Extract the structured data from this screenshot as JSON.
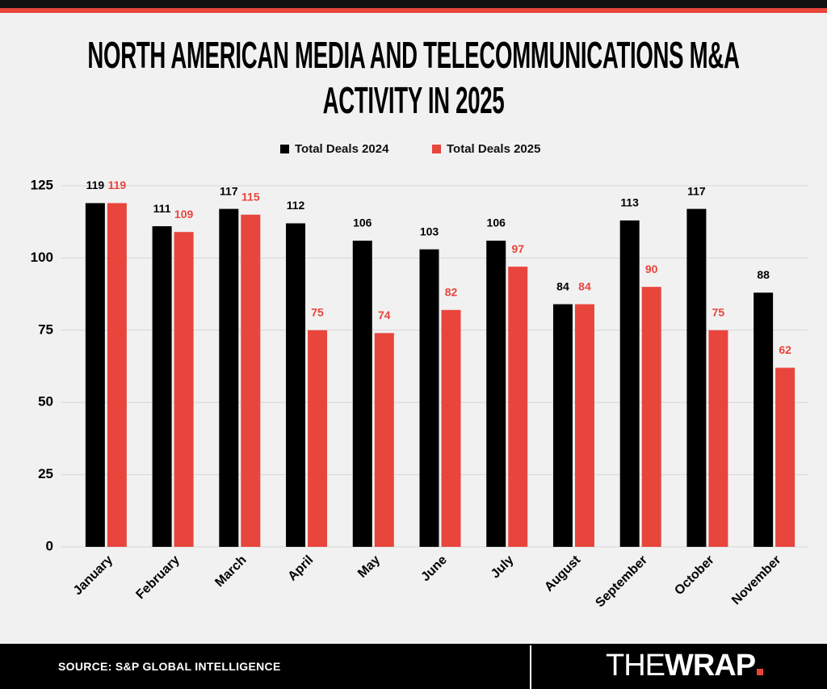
{
  "chart_data": {
    "type": "bar",
    "title": "NORTH AMERICAN MEDIA AND TELECOMMUNICATIONS M&A ACTIVITY IN 2025",
    "categories": [
      "January",
      "February",
      "March",
      "April",
      "May",
      "June",
      "July",
      "August",
      "September",
      "October",
      "November"
    ],
    "series": [
      {
        "name": "Total Deals 2024",
        "color": "#000000",
        "values": [
          119,
          111,
          117,
          112,
          106,
          103,
          106,
          84,
          113,
          117,
          88
        ]
      },
      {
        "name": "Total Deals 2025",
        "color": "#e8453c",
        "values": [
          119,
          109,
          115,
          75,
          74,
          82,
          97,
          84,
          90,
          75,
          62
        ]
      }
    ],
    "ylim": [
      0,
      125
    ],
    "yticks": [
      0,
      25,
      50,
      75,
      100,
      125
    ],
    "grid": true,
    "legend": "top"
  },
  "footer": {
    "source": "SOURCE: S&P GLOBAL INTELLIGENCE",
    "logo_thin": "THE",
    "logo_bold": "WRAP"
  }
}
